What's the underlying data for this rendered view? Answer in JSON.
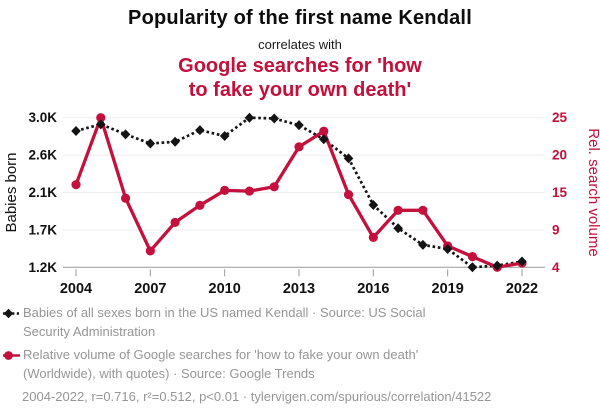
{
  "header": {
    "title": "Popularity of the first name Kendall",
    "connector": "correlates with",
    "subtitle_line1": "Google searches for 'how",
    "subtitle_line2": "to fake your own death'"
  },
  "colors": {
    "accent_red": "#c3103c",
    "series_black": "#141414",
    "text_gray": "#969696",
    "grid": "#ededed",
    "axis": "#9a9a9a"
  },
  "chart_data": {
    "type": "line",
    "x": [
      2004,
      2005,
      2006,
      2007,
      2008,
      2009,
      2010,
      2011,
      2012,
      2013,
      2014,
      2015,
      2016,
      2017,
      2018,
      2019,
      2020,
      2021,
      2022
    ],
    "series": [
      {
        "name": "Babies of all sexes born in the US named Kendall",
        "axis": "left",
        "color": "#141414",
        "marker": "diamond",
        "line_style": "dotted",
        "values": [
          2840,
          2920,
          2800,
          2690,
          2710,
          2850,
          2780,
          3000,
          2990,
          2910,
          2740,
          2510,
          1950,
          1670,
          1470,
          1420,
          1200,
          1220,
          1270
        ]
      },
      {
        "name": "Relative volume of Google searches for 'how to fake your own death'",
        "axis": "right",
        "color": "#c3103c",
        "marker": "circle",
        "line_style": "solid",
        "values": [
          15.6,
          25,
          13.7,
          6.3,
          10.3,
          12.7,
          14.8,
          14.7,
          15.3,
          20.9,
          23.1,
          14.2,
          8.2,
          12,
          12,
          7,
          5.5,
          4,
          4.6
        ]
      }
    ],
    "left_axis": {
      "label": "Babies born",
      "range": [
        1200,
        3000
      ],
      "ticks": [
        1200,
        1650,
        2100,
        2550,
        3000
      ],
      "tick_labels": [
        "1.2K",
        "1.7K",
        "2.1K",
        "2.6K",
        "3.0K"
      ]
    },
    "right_axis": {
      "label": "Rel. search volume",
      "range": [
        4,
        25
      ],
      "ticks": [
        4,
        9.25,
        14.5,
        19.75,
        25
      ],
      "tick_labels": [
        "4",
        "9",
        "15",
        "20",
        "25"
      ]
    },
    "x_axis": {
      "ticks": [
        2004,
        2007,
        2010,
        2013,
        2016,
        2019,
        2022
      ]
    },
    "grid": true,
    "legend_position": "bottom"
  },
  "legend": [
    {
      "icon": "black-diamond-dotted-line",
      "text": "Babies of all sexes born in the US named Kendall · Source: US Social Security Administration"
    },
    {
      "icon": "red-circle-solid-line",
      "text": "Relative volume of Google searches for 'how to fake your own death' (Worldwide), with quotes) · Source: Google Trends"
    }
  ],
  "footer": {
    "text": "2004-2022, r=0.716, r²=0.512, p<0.01 · tylervigen.com/spurious/correlation/41522"
  }
}
